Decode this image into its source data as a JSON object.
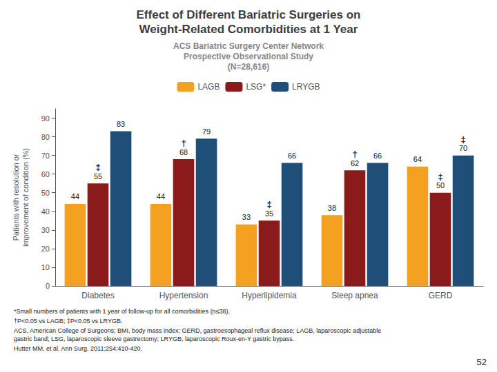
{
  "chart_data": {
    "type": "bar",
    "title": "Effect of Different Bariatric Surgeries on\nWeight-Related Comorbidities at 1 Year",
    "subtitle": "ACS Bariatric Surgery Center Network\nProspective Observational Study\n(N=28,616)",
    "ylabel": "Patients with resolution or\nimprovement of condition (%)",
    "categories": [
      "Diabetes",
      "Hypertension",
      "Hyperlipidemia",
      "Sleep apnea",
      "GERD"
    ],
    "series": [
      {
        "name": "LAGB",
        "color": "#F4A020",
        "values": [
          44,
          44,
          33,
          38,
          64
        ]
      },
      {
        "name": "LSG*",
        "color": "#8B1A1A",
        "values": [
          55,
          68,
          35,
          62,
          50
        ]
      },
      {
        "name": "LRYGB",
        "color": "#1F4E79",
        "values": [
          83,
          79,
          66,
          66,
          70
        ]
      }
    ],
    "annotations": [
      {
        "text": "†",
        "series": "LSG*",
        "category": "Hypertension"
      },
      {
        "text": "†",
        "series": "LSG*",
        "category": "Sleep apnea"
      },
      {
        "text": "‡",
        "series": "LSG*",
        "category": "Diabetes"
      },
      {
        "text": "‡",
        "series": "LSG*",
        "category": "Hyperlipidemia"
      },
      {
        "text": "‡",
        "series": "LSG*",
        "category": "GERD"
      },
      {
        "text": "‡",
        "series": "LRYGB",
        "category": "GERD"
      }
    ],
    "footnotes": [
      "*Small numbers of patients with 1 year of follow-up for all comorbidities (n≤38).",
      "†P<0.05 vs LAGB; ‡P<0.05 vs LRYGB.",
      "ACS, American College of Surgeons; BMI, body mass index; GERD, gastroesophageal reflux disease; LAGB, laparoscopic adjustable\ngastric band; LSG, laparoscopic sleeve gastrectomy; LRYGB, laparoscopic Roux-en-Y gastric bypass.",
      "Hutter MM, et al. Ann Surg. 2011;254:410-420."
    ],
    "page_number": "52",
    "ylim": [
      0,
      95
    ],
    "yticks": [
      0,
      10,
      20,
      30,
      40,
      50,
      60,
      70,
      80,
      90
    ],
    "grid": false,
    "legend": "top",
    "data_labels": true
  }
}
